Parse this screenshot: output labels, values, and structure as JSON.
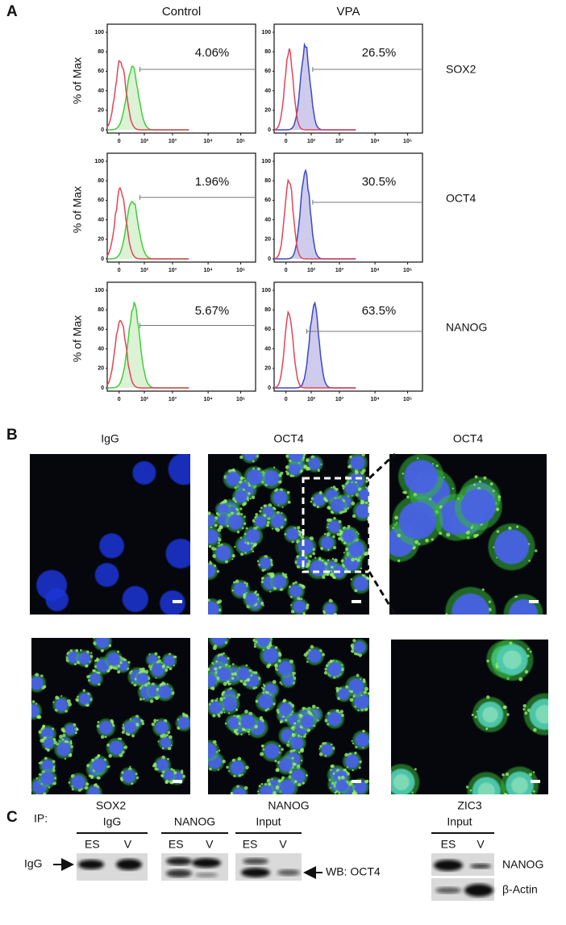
{
  "panel_a": {
    "label": "A",
    "columns": [
      "Control",
      "VPA"
    ],
    "y_axis_label": "% of Max",
    "yticks": [
      0,
      20,
      40,
      60,
      80,
      100
    ],
    "xticks": [
      "0",
      "10²",
      "10³",
      "10⁴",
      "10⁵"
    ],
    "rows": [
      {
        "marker": "SOX2",
        "control": "4.06%",
        "vpa": "26.5%"
      },
      {
        "marker": "OCT4",
        "control": "1.96%",
        "vpa": "30.5%"
      },
      {
        "marker": "NANOG",
        "control": "5.67%",
        "vpa": "63.5%"
      }
    ]
  },
  "panel_b": {
    "label": "B",
    "top_row": [
      "IgG",
      "OCT4",
      "OCT4"
    ],
    "bottom_row": [
      "SOX2",
      "NANOG",
      "ZIC3"
    ]
  },
  "panel_c": {
    "label": "C",
    "ip_label": "IP:",
    "groups": [
      {
        "name": "IgG",
        "lanes": [
          "ES",
          "V"
        ]
      },
      {
        "name": "NANOG",
        "lanes": [
          "ES",
          "V"
        ]
      },
      {
        "name": "Input",
        "lanes": [
          "ES",
          "V"
        ]
      }
    ],
    "right_group": {
      "name": "Input",
      "lanes": [
        "ES",
        "V"
      ]
    },
    "left_marker": "IgG",
    "wb_label": "WB: OCT4",
    "right_blots": [
      "NANOG",
      "β-Actin"
    ]
  }
}
